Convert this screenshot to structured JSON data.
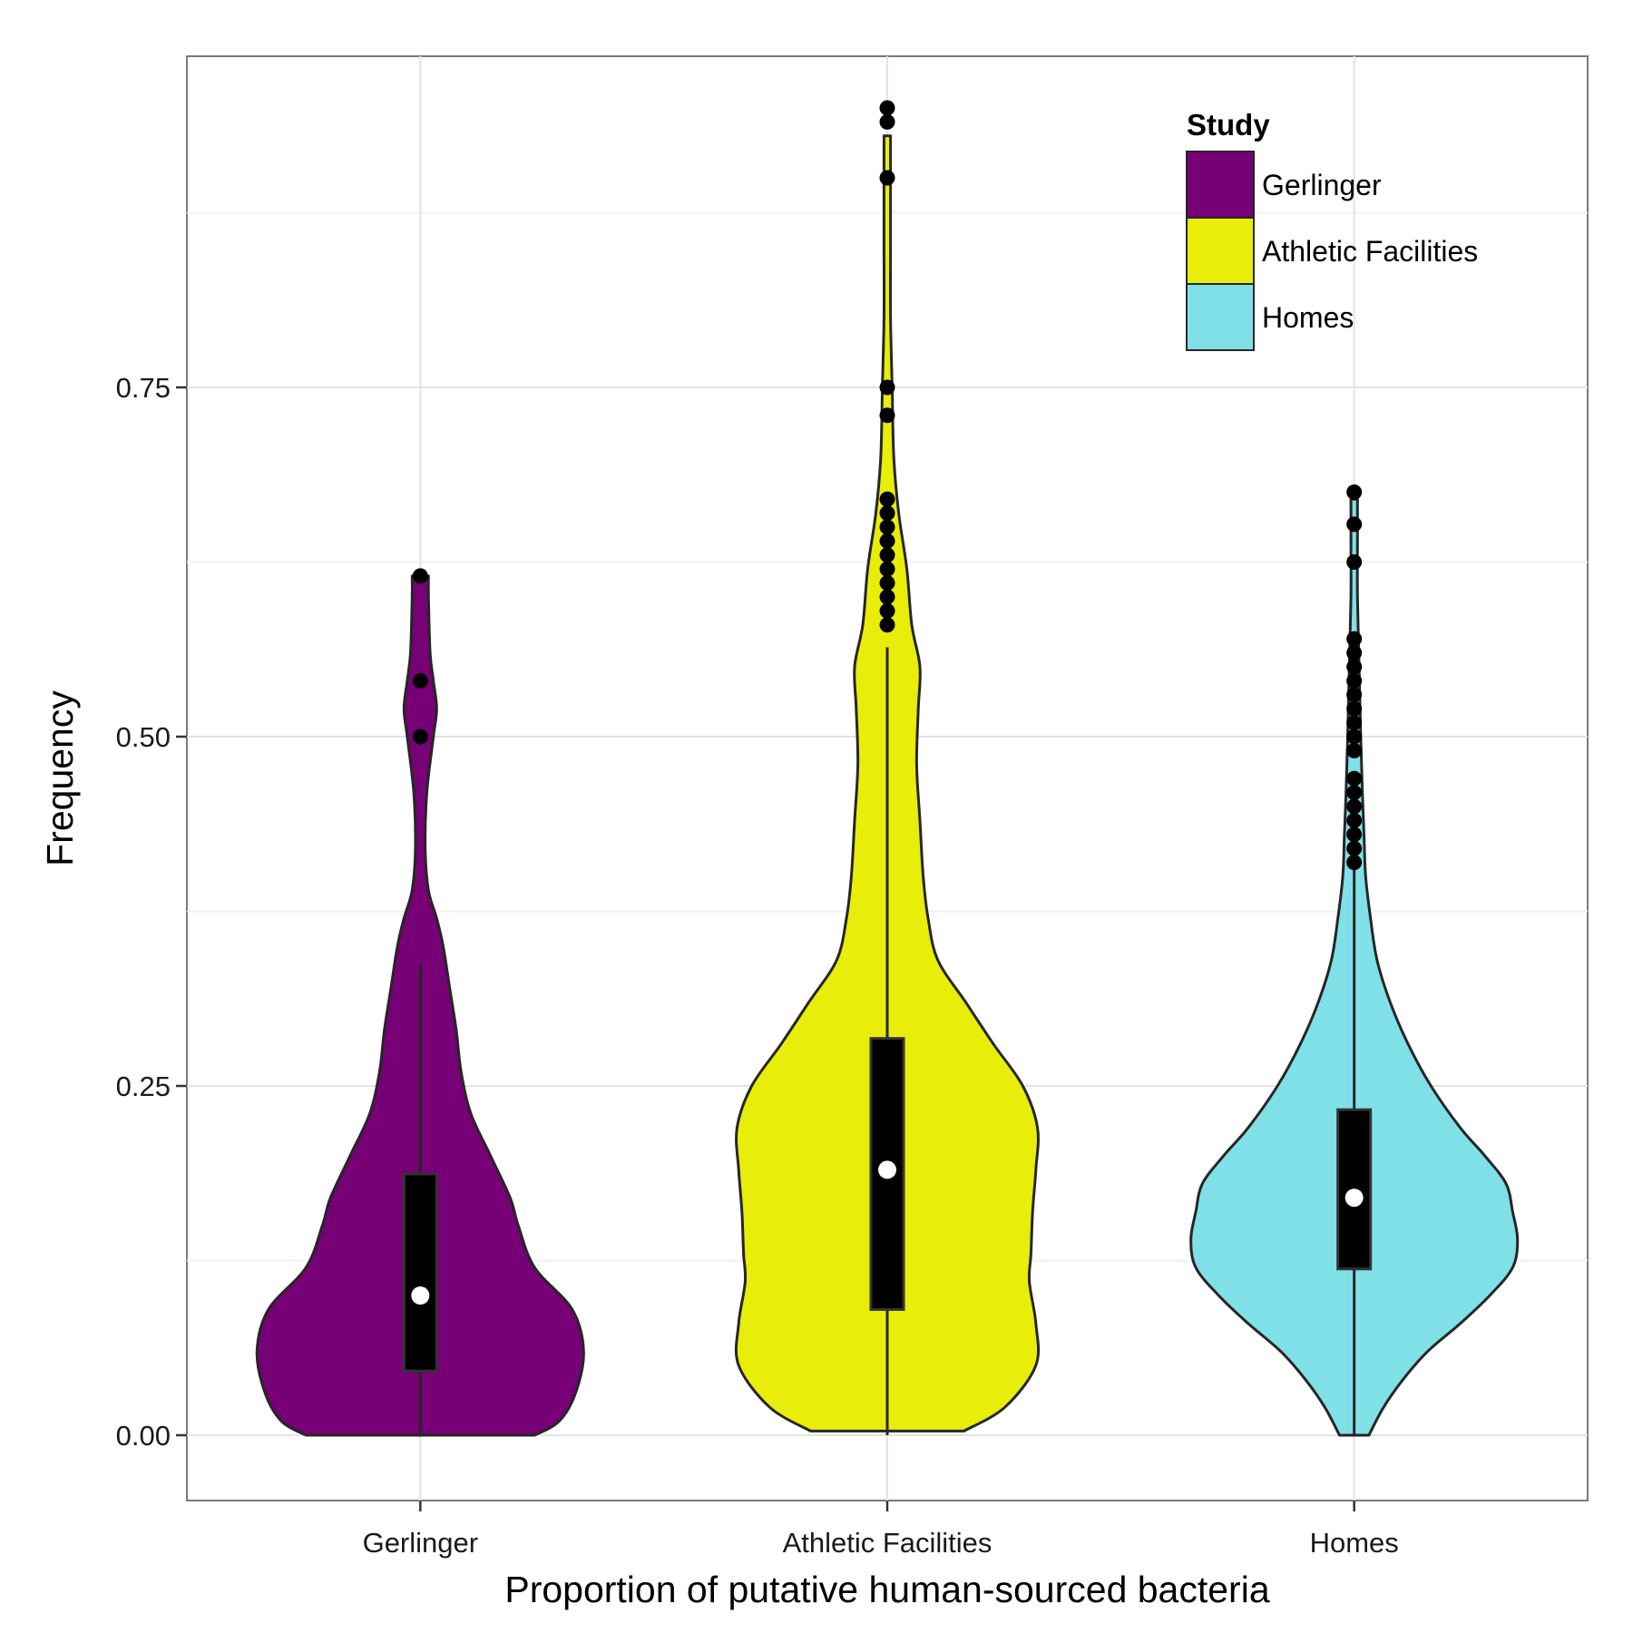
{
  "chart_data": {
    "type": "violin",
    "title": "",
    "xlabel": "Proportion of putative human-sourced bacteria",
    "ylabel": "Frequency",
    "ylim": [
      -0.045,
      0.985
    ],
    "y_ticks": [
      0.0,
      0.25,
      0.5,
      0.75
    ],
    "y_tick_labels": [
      "0.00",
      "0.25",
      "0.50",
      "0.75"
    ],
    "categories": [
      "Gerlinger",
      "Athletic Facilities",
      "Homes"
    ],
    "grid": true,
    "legend": {
      "title": "Study",
      "position": "top-right",
      "entries": [
        "Gerlinger",
        "Athletic Facilities",
        "Homes"
      ]
    },
    "series": [
      {
        "name": "Gerlinger",
        "color": "#770077",
        "density": [
          [
            0.0,
            0.7
          ],
          [
            0.01,
            0.85
          ],
          [
            0.03,
            0.95
          ],
          [
            0.06,
            1.0
          ],
          [
            0.09,
            0.93
          ],
          [
            0.12,
            0.7
          ],
          [
            0.15,
            0.6
          ],
          [
            0.17,
            0.55
          ],
          [
            0.2,
            0.43
          ],
          [
            0.23,
            0.31
          ],
          [
            0.26,
            0.25
          ],
          [
            0.29,
            0.22
          ],
          [
            0.32,
            0.18
          ],
          [
            0.35,
            0.14
          ],
          [
            0.37,
            0.1
          ],
          [
            0.39,
            0.05
          ],
          [
            0.42,
            0.03
          ],
          [
            0.46,
            0.04
          ],
          [
            0.5,
            0.08
          ],
          [
            0.52,
            0.1
          ],
          [
            0.54,
            0.08
          ],
          [
            0.56,
            0.06
          ],
          [
            0.6,
            0.05
          ],
          [
            0.615,
            0.05
          ]
        ],
        "box": {
          "q1": 0.046,
          "median": 0.1,
          "q3": 0.187,
          "whisker_low": 0.0,
          "whisker_high": 0.337
        },
        "outliers": [
          0.5,
          0.54,
          0.615
        ]
      },
      {
        "name": "Athletic Facilities",
        "color": "#e8ed0a",
        "density": [
          [
            0.003,
            0.47
          ],
          [
            0.02,
            0.72
          ],
          [
            0.05,
            0.91
          ],
          [
            0.08,
            0.91
          ],
          [
            0.11,
            0.87
          ],
          [
            0.13,
            0.88
          ],
          [
            0.16,
            0.89
          ],
          [
            0.19,
            0.91
          ],
          [
            0.22,
            0.92
          ],
          [
            0.25,
            0.83
          ],
          [
            0.28,
            0.65
          ],
          [
            0.31,
            0.48
          ],
          [
            0.34,
            0.31
          ],
          [
            0.37,
            0.25
          ],
          [
            0.4,
            0.22
          ],
          [
            0.44,
            0.2
          ],
          [
            0.48,
            0.18
          ],
          [
            0.52,
            0.19
          ],
          [
            0.55,
            0.2
          ],
          [
            0.58,
            0.15
          ],
          [
            0.62,
            0.12
          ],
          [
            0.66,
            0.07
          ],
          [
            0.7,
            0.04
          ],
          [
            0.75,
            0.03
          ],
          [
            0.8,
            0.02
          ],
          [
            0.85,
            0.02
          ],
          [
            0.89,
            0.02
          ],
          [
            0.93,
            0.02
          ]
        ],
        "box": {
          "q1": 0.09,
          "median": 0.19,
          "q3": 0.284,
          "whisker_low": 0.0,
          "whisker_high": 0.564
        },
        "outliers": [
          0.58,
          0.59,
          0.6,
          0.61,
          0.62,
          0.63,
          0.64,
          0.65,
          0.66,
          0.67,
          0.73,
          0.75,
          0.9,
          0.94,
          0.95
        ]
      },
      {
        "name": "Homes",
        "color": "#80e0e8",
        "density": [
          [
            0.0,
            0.09
          ],
          [
            0.02,
            0.18
          ],
          [
            0.04,
            0.3
          ],
          [
            0.06,
            0.45
          ],
          [
            0.08,
            0.65
          ],
          [
            0.1,
            0.83
          ],
          [
            0.12,
            0.97
          ],
          [
            0.14,
            1.0
          ],
          [
            0.16,
            0.97
          ],
          [
            0.18,
            0.93
          ],
          [
            0.2,
            0.8
          ],
          [
            0.22,
            0.65
          ],
          [
            0.25,
            0.47
          ],
          [
            0.28,
            0.33
          ],
          [
            0.31,
            0.22
          ],
          [
            0.34,
            0.14
          ],
          [
            0.37,
            0.1
          ],
          [
            0.4,
            0.07
          ],
          [
            0.43,
            0.06
          ],
          [
            0.46,
            0.05
          ],
          [
            0.5,
            0.04
          ],
          [
            0.55,
            0.03
          ],
          [
            0.6,
            0.02
          ],
          [
            0.64,
            0.02
          ],
          [
            0.67,
            0.02
          ]
        ],
        "box": {
          "q1": 0.119,
          "median": 0.17,
          "q3": 0.233,
          "whisker_low": 0.0,
          "whisker_high": 0.405
        },
        "outliers": [
          0.41,
          0.42,
          0.43,
          0.44,
          0.45,
          0.46,
          0.47,
          0.49,
          0.5,
          0.51,
          0.52,
          0.53,
          0.54,
          0.55,
          0.56,
          0.57,
          0.625,
          0.652,
          0.675
        ]
      }
    ]
  }
}
